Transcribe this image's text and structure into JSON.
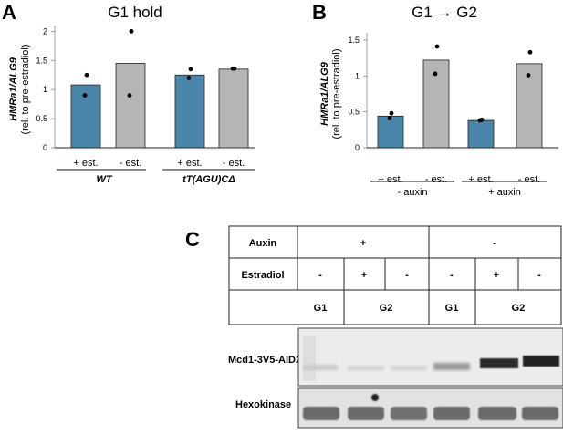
{
  "panels": {
    "A": {
      "letter": "A",
      "title": "G1 hold",
      "ylabel_line1": "HMRa1/ALG9",
      "ylabel_line2": "(rel. to pre-estradiol)",
      "groups": [
        "WT",
        "tT(AGU)CΔ"
      ]
    },
    "B": {
      "letter": "B",
      "title": "G1 → G2",
      "ylabel_line1": "HMRa1/ALG9",
      "ylabel_line2": "(rel. to pre-estradiol)",
      "groups": [
        "- auxin",
        "+ auxin"
      ]
    },
    "C": {
      "letter": "C",
      "rows": {
        "auxin_label": "Auxin",
        "auxin_values": [
          "+",
          "-"
        ],
        "estradiol_label": "Estradiol",
        "estradiol_values": [
          "-",
          "+",
          "-",
          "-",
          "+",
          "-"
        ],
        "phase_values": [
          "G1",
          "G2",
          "G1",
          "G2"
        ],
        "blot1_label": "Mcd1-3V5-AID2",
        "blot2_label": "Hexokinase"
      }
    }
  },
  "colors": {
    "blue": "#4a86aa",
    "gray": "#b5b5b5"
  },
  "chart_data": [
    {
      "type": "bar",
      "title": "G1 hold",
      "ylabel": "HMRa1/ALG9 (rel. to pre-estradiol)",
      "categories": [
        "+ est.",
        "- est.",
        "+ est.",
        "- est."
      ],
      "values": [
        1.08,
        1.45,
        1.25,
        1.35
      ],
      "colors": [
        "#4a86aa",
        "#b5b5b5",
        "#4a86aa",
        "#b5b5b5"
      ],
      "points": [
        [
          1.25,
          0.9
        ],
        [
          2.0,
          0.9
        ],
        [
          1.35,
          1.2
        ],
        [
          1.36,
          1.36
        ]
      ],
      "yticks": [
        "0",
        "0.5",
        "1",
        "1.5",
        "2"
      ],
      "ylim": [
        0,
        2.1
      ]
    },
    {
      "type": "bar",
      "title": "G1 → G2",
      "ylabel": "HMRa1/ALG9 (rel. to pre-estradiol)",
      "categories": [
        "+ est.",
        "- est.",
        "+ est.",
        "- est."
      ],
      "values": [
        0.44,
        1.22,
        0.38,
        1.17
      ],
      "colors": [
        "#4a86aa",
        "#b5b5b5",
        "#4a86aa",
        "#b5b5b5"
      ],
      "points": [
        [
          0.48,
          0.41
        ],
        [
          1.41,
          1.03
        ],
        [
          0.39,
          0.38
        ],
        [
          1.33,
          1.01
        ]
      ],
      "yticks": [
        "0",
        "0.5",
        "1",
        "1.5"
      ],
      "ylim": [
        0,
        1.6
      ]
    }
  ]
}
